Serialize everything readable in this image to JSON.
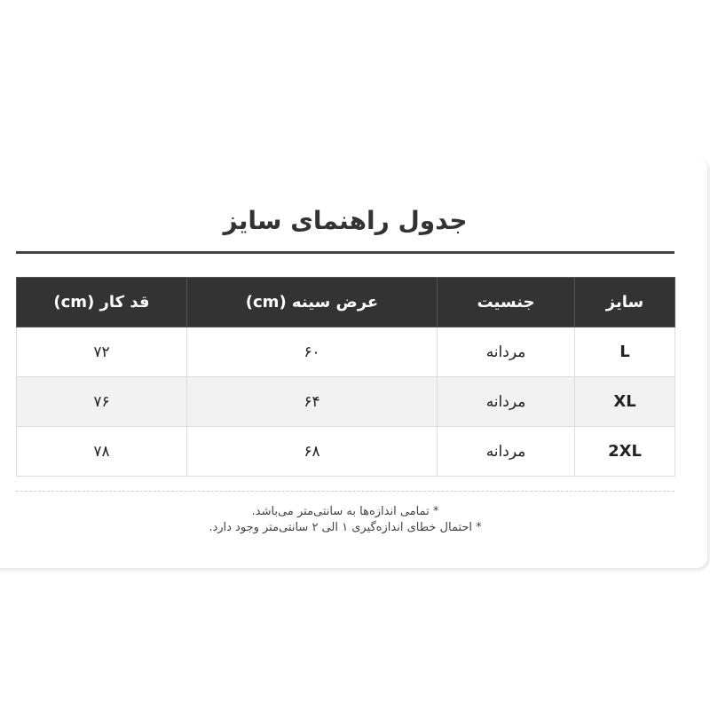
{
  "title": "جدول راهنمای سایز",
  "table": {
    "headers": [
      "سایز",
      "جنسیت",
      "عرض سینه (cm)",
      "قد کار (cm)"
    ],
    "rows": [
      [
        "L",
        "مردانه",
        "۶۰",
        "۷۲"
      ],
      [
        "XL",
        "مردانه",
        "۶۴",
        "۷۶"
      ],
      [
        "2XL",
        "مردانه",
        "۶۸",
        "۷۸"
      ]
    ]
  },
  "notes": [
    "* تمامی اندازه‌ها به سانتی‌متر می‌باشد.",
    "* احتمال خطای اندازه‌گیری ۱ الی ۲ سانتی‌متر وجود دارد."
  ]
}
